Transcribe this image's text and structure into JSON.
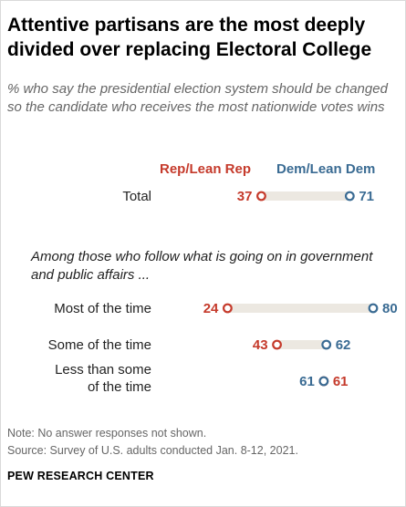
{
  "title": "Attentive partisans are the most deeply divided over replacing Electoral College",
  "subtitle": "% who say the presidential election system should be changed so the candidate who receives the most nationwide votes wins",
  "legend": {
    "rep": "Rep/Lean Rep",
    "dem": "Dem/Lean Dem"
  },
  "section_note": "Among those who follow what is going on in government and public affairs ...",
  "notes": {
    "note": "Note: No answer responses not shown.",
    "source": "Source: Survey of U.S. adults conducted Jan. 8-12, 2021."
  },
  "brand": "PEW RESEARCH CENTER",
  "colors": {
    "rep": "#c53a2b",
    "dem": "#3a6b93",
    "bar": "#ece8e1"
  },
  "chart_data": {
    "type": "dot",
    "categories": [
      "Total",
      "Most of the time",
      "Some of the time",
      "Less than some of the time"
    ],
    "category_lines": [
      [
        "Total"
      ],
      [
        "Most of the time"
      ],
      [
        "Some of the time"
      ],
      [
        "Less than some",
        "of the time"
      ]
    ],
    "series": [
      {
        "name": "Rep/Lean Rep",
        "values": [
          37,
          24,
          43,
          61
        ]
      },
      {
        "name": "Dem/Lean Dem",
        "values": [
          71,
          80,
          62,
          61
        ]
      }
    ],
    "xlim": [
      0,
      100
    ]
  }
}
